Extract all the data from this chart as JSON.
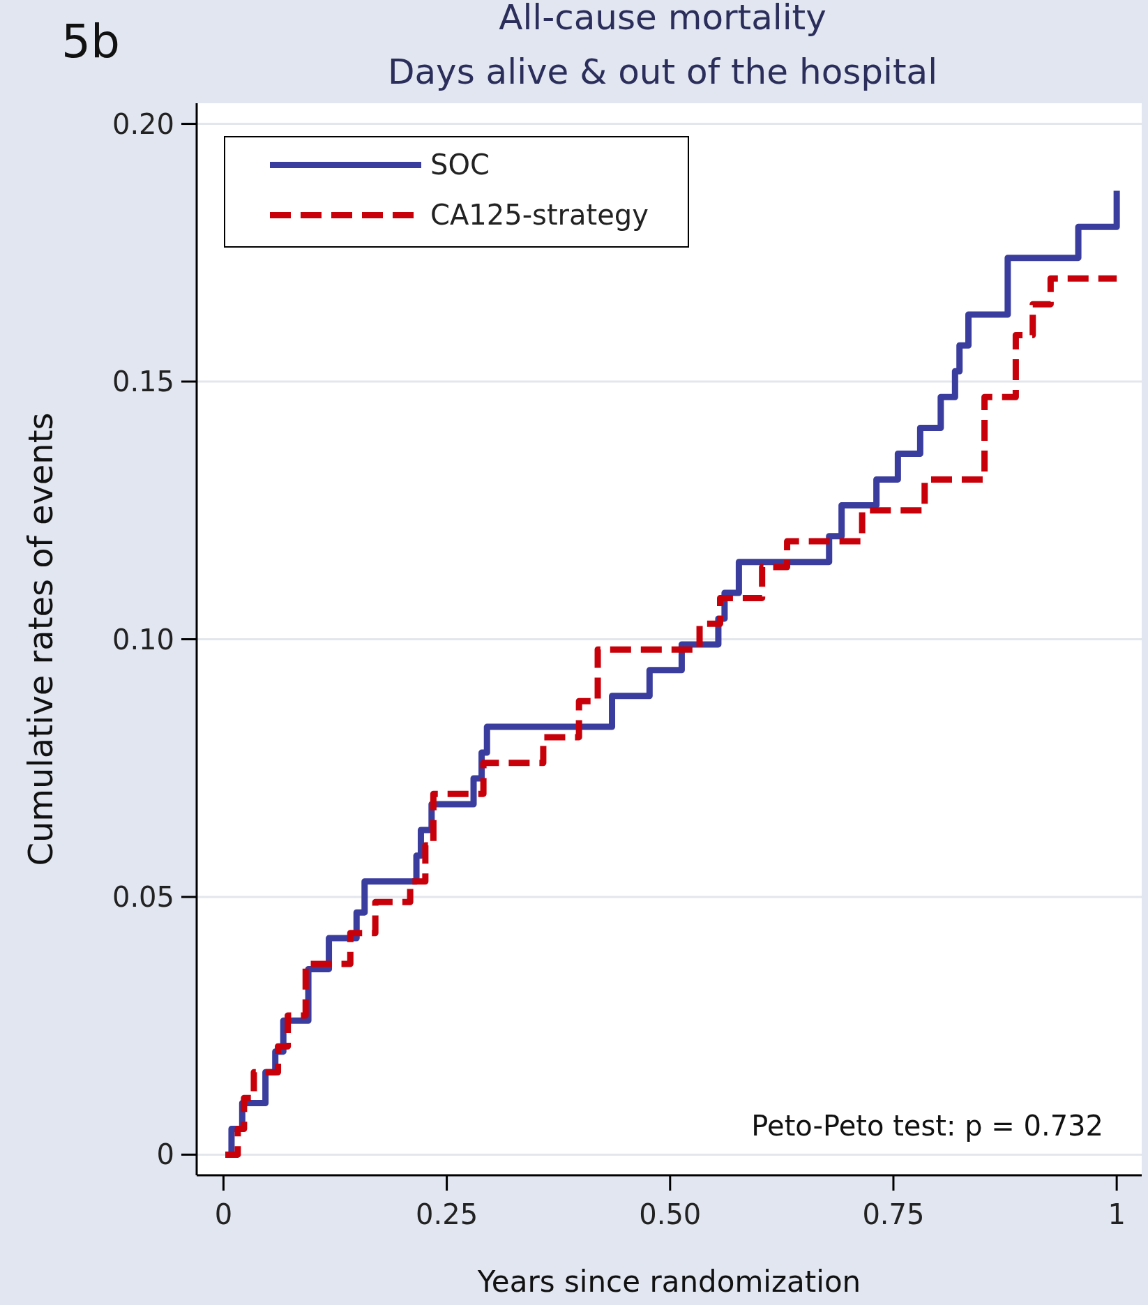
{
  "chart_data": {
    "type": "step",
    "title": "All-cause mortality",
    "subtitle": "Days alive & out of the hospital",
    "xlabel": "Years since randomization",
    "ylabel": "Cumulative rates of events",
    "annotations": [
      "5b",
      "Peto-Peto test: p = 0.732"
    ],
    "series": [
      {
        "name": "SOC",
        "color": "#3a3d9e",
        "line_style": "solid",
        "x": [
          0.005,
          0.009,
          0.021,
          0.047,
          0.058,
          0.067,
          0.095,
          0.118,
          0.149,
          0.158,
          0.216,
          0.221,
          0.233,
          0.28,
          0.289,
          0.295,
          0.435,
          0.477,
          0.513,
          0.554,
          0.561,
          0.577,
          0.678,
          0.692,
          0.731,
          0.755,
          0.78,
          0.803,
          0.819,
          0.824,
          0.834,
          0.878,
          0.957,
          1.0
        ],
        "values": [
          0,
          0.005,
          0.01,
          0.016,
          0.02,
          0.026,
          0.036,
          0.042,
          0.047,
          0.053,
          0.058,
          0.063,
          0.068,
          0.073,
          0.078,
          0.083,
          0.089,
          0.094,
          0.099,
          0.104,
          0.109,
          0.115,
          0.12,
          0.126,
          0.131,
          0.136,
          0.141,
          0.147,
          0.152,
          0.157,
          0.163,
          0.174,
          0.18,
          0.187
        ]
      },
      {
        "name": "CA125-strategy",
        "color": "#c8000a",
        "line_style": "dashed",
        "x": [
          0.002,
          0.016,
          0.023,
          0.034,
          0.061,
          0.072,
          0.092,
          0.142,
          0.17,
          0.209,
          0.226,
          0.235,
          0.291,
          0.358,
          0.398,
          0.419,
          0.533,
          0.556,
          0.603,
          0.631,
          0.715,
          0.785,
          0.852,
          0.887,
          0.906,
          0.926,
          1.0
        ],
        "values": [
          0,
          0.005,
          0.011,
          0.016,
          0.021,
          0.027,
          0.037,
          0.043,
          0.049,
          0.053,
          0.06,
          0.07,
          0.076,
          0.081,
          0.088,
          0.098,
          0.103,
          0.108,
          0.114,
          0.119,
          0.125,
          0.131,
          0.147,
          0.159,
          0.165,
          0.17,
          0.17
        ]
      }
    ],
    "xlim": [
      -0.03,
      1.028
    ],
    "ylim": [
      -0.004,
      0.204
    ],
    "xticks": [
      0,
      {
        "value": 0.25,
        "label": "0.25"
      },
      {
        "value": 0.5,
        "label": "0.50"
      },
      {
        "value": 0.75,
        "label": "0.75"
      },
      1
    ],
    "yticks": [
      0,
      0.05,
      {
        "value": 0.1,
        "label": "0.10"
      },
      0.15,
      {
        "value": 0.2,
        "label": "0.20"
      }
    ],
    "grid": "y",
    "legend": "top left"
  }
}
